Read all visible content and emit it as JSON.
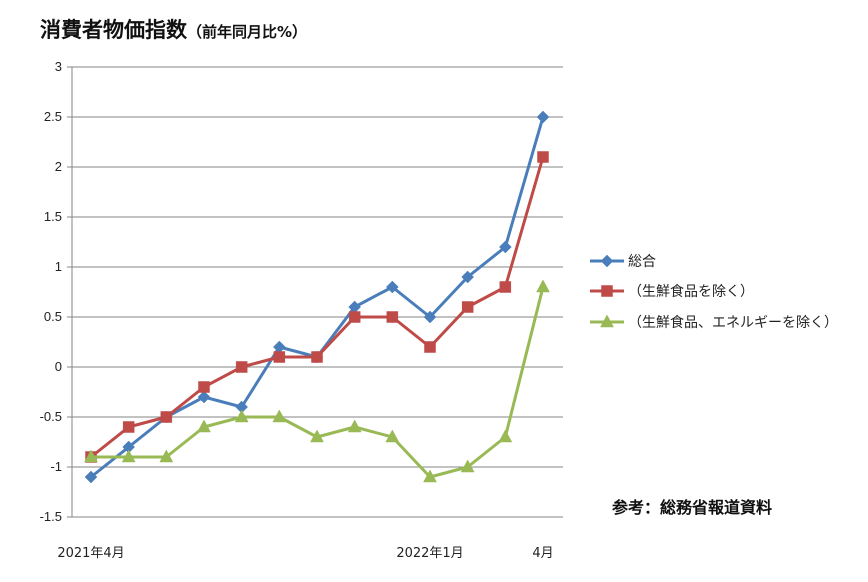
{
  "title": "消費者物価指数",
  "subtitle": "（前年同月比%）",
  "source_note": "参考：総務省報道資料",
  "colors": {
    "series1": "#4a7ebb",
    "series2": "#be4b48",
    "series3": "#98b954",
    "grid": "#868686"
  },
  "chart_data": {
    "type": "line",
    "title": "消費者物価指数（前年同月比%）",
    "ylim": [
      -1.5,
      3
    ],
    "yticks": [
      "3",
      "2.5",
      "2",
      "1.5",
      "1",
      "0.5",
      "0",
      "-0.5",
      "-1",
      "-1.5"
    ],
    "ytick_values": [
      3,
      2.5,
      2,
      1.5,
      1,
      0.5,
      0,
      -0.5,
      -1,
      -1.5
    ],
    "x_labels": [
      {
        "index": 0,
        "text": "2021年4月"
      },
      {
        "index": 9,
        "text": "2022年1月"
      },
      {
        "index": 12,
        "text": "4月"
      }
    ],
    "x_count": 13,
    "grid": "horizontal",
    "legend": "right",
    "series": [
      {
        "name": "総合",
        "marker": "diamond",
        "values": [
          -1.1,
          -0.8,
          -0.5,
          -0.3,
          -0.4,
          0.2,
          0.1,
          0.6,
          0.8,
          0.5,
          0.9,
          1.2,
          2.5
        ]
      },
      {
        "name": "（生鮮食品を除く）",
        "marker": "square",
        "values": [
          -0.9,
          -0.6,
          -0.5,
          -0.2,
          0.0,
          0.1,
          0.1,
          0.5,
          0.5,
          0.2,
          0.6,
          0.8,
          2.1
        ]
      },
      {
        "name": "（生鮮食品、エネルギーを除く）",
        "marker": "triangle",
        "values": [
          -0.9,
          -0.9,
          -0.9,
          -0.6,
          -0.5,
          -0.5,
          -0.7,
          -0.6,
          -0.7,
          -1.1,
          -1.0,
          -0.7,
          0.8
        ]
      }
    ]
  }
}
